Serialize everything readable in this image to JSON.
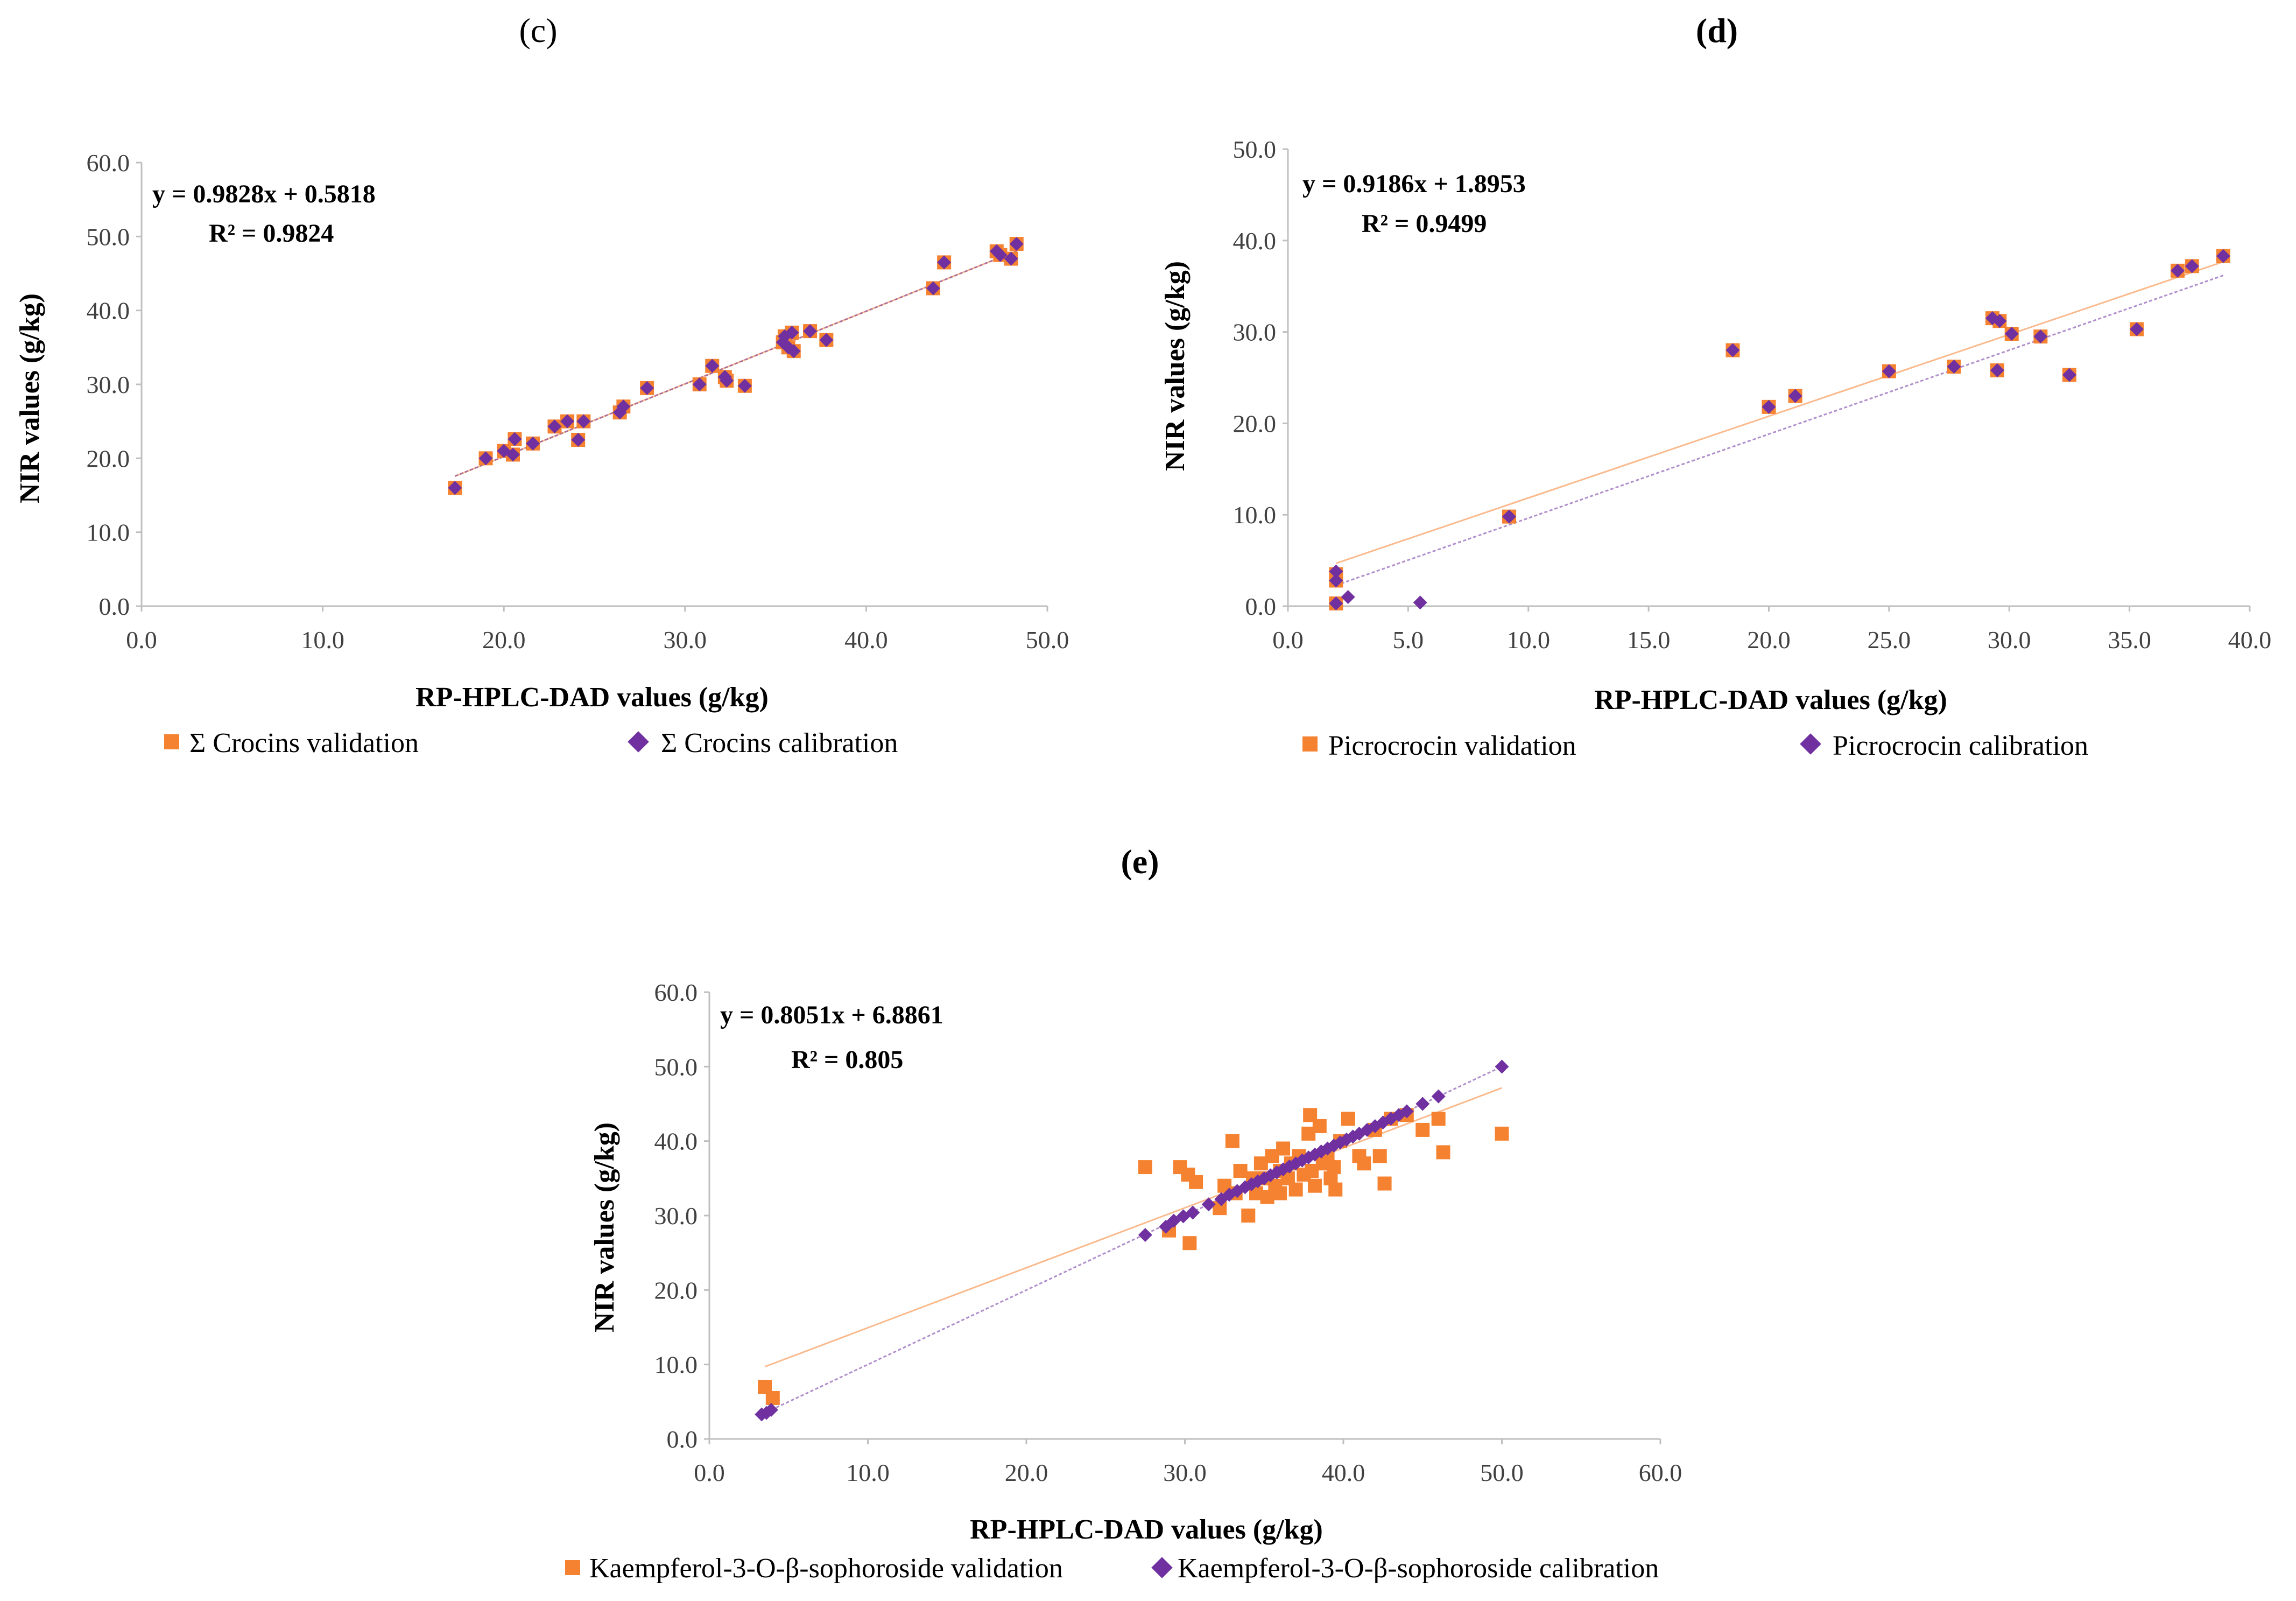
{
  "colors": {
    "validation": "#f58230",
    "calibration": "#7030a0",
    "axis": "#bfbfbf"
  },
  "chart_data": [
    {
      "id": "c",
      "type": "scatter",
      "panel_label": "c",
      "equation": "y = 0.9828x + 0.5818",
      "r2": "R² = 0.9824",
      "xlabel": "RP-HPLC-DAD values (g/kg)",
      "ylabel": "NIR values (g/kg)",
      "xlim": [
        0,
        50
      ],
      "ylim": [
        0,
        60
      ],
      "xticks": [
        0,
        10,
        20,
        30,
        40,
        50
      ],
      "yticks": [
        0,
        10,
        20,
        30,
        40,
        50,
        60
      ],
      "trend": {
        "validation": [
          0.9828,
          0.5818
        ],
        "calibration": [
          0.9828,
          0.5818
        ]
      },
      "legend": [
        "Σ Crocins validation",
        "Σ Crocins calibration"
      ],
      "series": [
        {
          "name": "Σ Crocins validation",
          "points": [
            [
              17.3,
              16
            ],
            [
              19,
              20
            ],
            [
              20,
              21
            ],
            [
              20.5,
              20.5
            ],
            [
              20.6,
              22.6
            ],
            [
              21.6,
              22
            ],
            [
              22.8,
              24.3
            ],
            [
              23.5,
              25
            ],
            [
              24.1,
              22.5
            ],
            [
              24.4,
              25
            ],
            [
              26.4,
              26.2
            ],
            [
              26.6,
              27
            ],
            [
              27.9,
              29.5
            ],
            [
              30.8,
              30
            ],
            [
              31.5,
              32.5
            ],
            [
              32.2,
              31
            ],
            [
              32.3,
              30.5
            ],
            [
              33.3,
              29.8
            ],
            [
              35.4,
              35.7
            ],
            [
              35.5,
              36.5
            ],
            [
              35.7,
              35
            ],
            [
              35.9,
              37
            ],
            [
              36,
              34.5
            ],
            [
              36.9,
              37.2
            ],
            [
              37.8,
              36
            ],
            [
              43.7,
              43
            ],
            [
              44.3,
              46.5
            ],
            [
              47.2,
              48
            ],
            [
              47.4,
              47.5
            ],
            [
              48,
              47
            ],
            [
              48.3,
              49
            ]
          ]
        },
        {
          "name": "Σ Crocins calibration",
          "points": [
            [
              17.3,
              16
            ],
            [
              19,
              20
            ],
            [
              20,
              21
            ],
            [
              20.5,
              20.5
            ],
            [
              20.6,
              22.6
            ],
            [
              21.6,
              22
            ],
            [
              22.8,
              24.3
            ],
            [
              23.5,
              25
            ],
            [
              24.1,
              22.5
            ],
            [
              24.4,
              25
            ],
            [
              26.4,
              26.2
            ],
            [
              26.6,
              27
            ],
            [
              27.9,
              29.5
            ],
            [
              30.8,
              30
            ],
            [
              31.5,
              32.5
            ],
            [
              32.2,
              31
            ],
            [
              32.3,
              30.5
            ],
            [
              33.3,
              29.8
            ],
            [
              35.4,
              35.7
            ],
            [
              35.5,
              36.5
            ],
            [
              35.7,
              35
            ],
            [
              35.9,
              37
            ],
            [
              36,
              34.5
            ],
            [
              36.9,
              37.2
            ],
            [
              37.8,
              36
            ],
            [
              43.7,
              43
            ],
            [
              44.3,
              46.5
            ],
            [
              47.2,
              48
            ],
            [
              47.4,
              47.5
            ],
            [
              48,
              47
            ],
            [
              48.3,
              49
            ]
          ]
        }
      ]
    },
    {
      "id": "d",
      "type": "scatter",
      "panel_label": "d",
      "equation": "y = 0.9186x + 1.8953",
      "r2": "R² = 0.9499",
      "xlabel": "RP-HPLC-DAD values (g/kg)",
      "ylabel": "NIR values (g/kg)",
      "xlim": [
        0,
        40
      ],
      "ylim": [
        0,
        50
      ],
      "xticks": [
        0,
        5,
        10,
        15,
        20,
        25,
        30,
        35,
        40
      ],
      "yticks": [
        0,
        10,
        20,
        30,
        40,
        50
      ],
      "trend": {
        "validation": [
          0.894,
          2.9
        ],
        "calibration": [
          0.9186,
          0.45
        ]
      },
      "legend": [
        "Picrocrocin validation",
        "Picrocrocin calibration"
      ],
      "series": [
        {
          "name": "Picrocrocin validation",
          "points": [
            [
              2,
              0.3
            ],
            [
              2,
              2.8
            ],
            [
              2,
              3.5
            ],
            [
              9.2,
              9.8
            ],
            [
              18.5,
              28
            ],
            [
              20,
              21.8
            ],
            [
              21.1,
              23
            ],
            [
              25,
              25.7
            ],
            [
              27.7,
              26.2
            ],
            [
              29.3,
              31.5
            ],
            [
              29.5,
              25.8
            ],
            [
              29.6,
              31.2
            ],
            [
              30.1,
              29.8
            ],
            [
              31.3,
              29.5
            ],
            [
              32.5,
              25.3
            ],
            [
              35.3,
              30.3
            ],
            [
              37,
              36.7
            ],
            [
              37.6,
              37.2
            ],
            [
              38.9,
              38.3
            ]
          ]
        },
        {
          "name": "Picrocrocin calibration",
          "points": [
            [
              2,
              0.3
            ],
            [
              2,
              2.8
            ],
            [
              2,
              3.8
            ],
            [
              2.5,
              1
            ],
            [
              5.5,
              0.4
            ],
            [
              9.2,
              9.8
            ],
            [
              18.5,
              28
            ],
            [
              20,
              21.8
            ],
            [
              21.1,
              23
            ],
            [
              25,
              25.7
            ],
            [
              27.7,
              26.2
            ],
            [
              29.3,
              31.5
            ],
            [
              29.5,
              25.8
            ],
            [
              29.6,
              31.2
            ],
            [
              30.1,
              29.8
            ],
            [
              31.3,
              29.5
            ],
            [
              32.5,
              25.3
            ],
            [
              35.3,
              30.3
            ],
            [
              37,
              36.7
            ],
            [
              37.6,
              37.2
            ],
            [
              38.9,
              38.3
            ]
          ]
        }
      ]
    },
    {
      "id": "e",
      "type": "scatter",
      "panel_label": "e",
      "equation": "y = 0.8051x + 6.8861",
      "r2": "R² = 0.805",
      "xlabel": "RP-HPLC-DAD values (g/kg)",
      "ylabel": "NIR values (g/kg)",
      "xlim": [
        0,
        60
      ],
      "ylim": [
        0,
        60
      ],
      "xticks": [
        0,
        10,
        20,
        30,
        40,
        50,
        60
      ],
      "yticks": [
        0,
        10,
        20,
        30,
        40,
        50,
        60
      ],
      "trend": {
        "validation": [
          0.8051,
          6.8861
        ],
        "calibration": [
          1.0,
          0.0
        ]
      },
      "legend": [
        "Kaempferol-3-O-β-sophoroside validation",
        "Kaempferol-3-O-β-sophoroside calibration"
      ],
      "series": [
        {
          "name": "Kaempferol-3-O-β-sophoroside validation",
          "points": [
            [
              3.5,
              7
            ],
            [
              4,
              5.5
            ],
            [
              27.5,
              36.5
            ],
            [
              29,
              28
            ],
            [
              29.7,
              36.5
            ],
            [
              30.2,
              35.5
            ],
            [
              30.3,
              26.3
            ],
            [
              30.7,
              34.5
            ],
            [
              32.2,
              31
            ],
            [
              32.5,
              34
            ],
            [
              33,
              40
            ],
            [
              33.2,
              33
            ],
            [
              33.5,
              36
            ],
            [
              34,
              30
            ],
            [
              34.3,
              35
            ],
            [
              34.5,
              33
            ],
            [
              34.8,
              37
            ],
            [
              35,
              35
            ],
            [
              35.2,
              32.5
            ],
            [
              35.5,
              38
            ],
            [
              35.7,
              34
            ],
            [
              36,
              36
            ],
            [
              36,
              33
            ],
            [
              36.2,
              39
            ],
            [
              36.5,
              35
            ],
            [
              36.7,
              37
            ],
            [
              37,
              33.5
            ],
            [
              37.2,
              38
            ],
            [
              37.5,
              35.5
            ],
            [
              37.8,
              41
            ],
            [
              37.9,
              43.5
            ],
            [
              38,
              36
            ],
            [
              38.2,
              34
            ],
            [
              38.5,
              42
            ],
            [
              38.7,
              37
            ],
            [
              39,
              38
            ],
            [
              39.2,
              35
            ],
            [
              39.4,
              36.5
            ],
            [
              39.5,
              33.5
            ],
            [
              39.8,
              40
            ],
            [
              40.3,
              43
            ],
            [
              41,
              38
            ],
            [
              41.3,
              37
            ],
            [
              42,
              41.5
            ],
            [
              42.3,
              38
            ],
            [
              42.6,
              34.3
            ],
            [
              43,
              43
            ],
            [
              44,
              43.5
            ],
            [
              45,
              41.5
            ],
            [
              46,
              43
            ],
            [
              46.3,
              38.5
            ],
            [
              50,
              41
            ]
          ]
        },
        {
          "name": "Kaempferol-3-O-β-sophoroside calibration",
          "points": [
            [
              3.3,
              3.3
            ],
            [
              3.6,
              3.5
            ],
            [
              3.9,
              3.9
            ],
            [
              27.5,
              27.4
            ],
            [
              28.8,
              28.5
            ],
            [
              29.3,
              29.3
            ],
            [
              29.9,
              29.9
            ],
            [
              30.5,
              30.4
            ],
            [
              31.5,
              31.5
            ],
            [
              32.3,
              32.2
            ],
            [
              32.8,
              32.8
            ],
            [
              33.3,
              33.3
            ],
            [
              33.8,
              33.8
            ],
            [
              34.2,
              34.2
            ],
            [
              34.6,
              34.6
            ],
            [
              35,
              35
            ],
            [
              35.4,
              35.4
            ],
            [
              35.8,
              35.8
            ],
            [
              36.2,
              36.2
            ],
            [
              36.6,
              36.6
            ],
            [
              37,
              37
            ],
            [
              37.4,
              37.4
            ],
            [
              37.8,
              37.8
            ],
            [
              38.2,
              38.2
            ],
            [
              38.6,
              38.6
            ],
            [
              39,
              39
            ],
            [
              39.4,
              39.4
            ],
            [
              39.8,
              39.8
            ],
            [
              40.2,
              40.2
            ],
            [
              40.6,
              40.6
            ],
            [
              41,
              41
            ],
            [
              41.5,
              41.5
            ],
            [
              42,
              42
            ],
            [
              42.5,
              42.5
            ],
            [
              43,
              43
            ],
            [
              43.5,
              43.5
            ],
            [
              44,
              44
            ],
            [
              45,
              45
            ],
            [
              46,
              46
            ],
            [
              50,
              50
            ]
          ]
        }
      ]
    }
  ]
}
